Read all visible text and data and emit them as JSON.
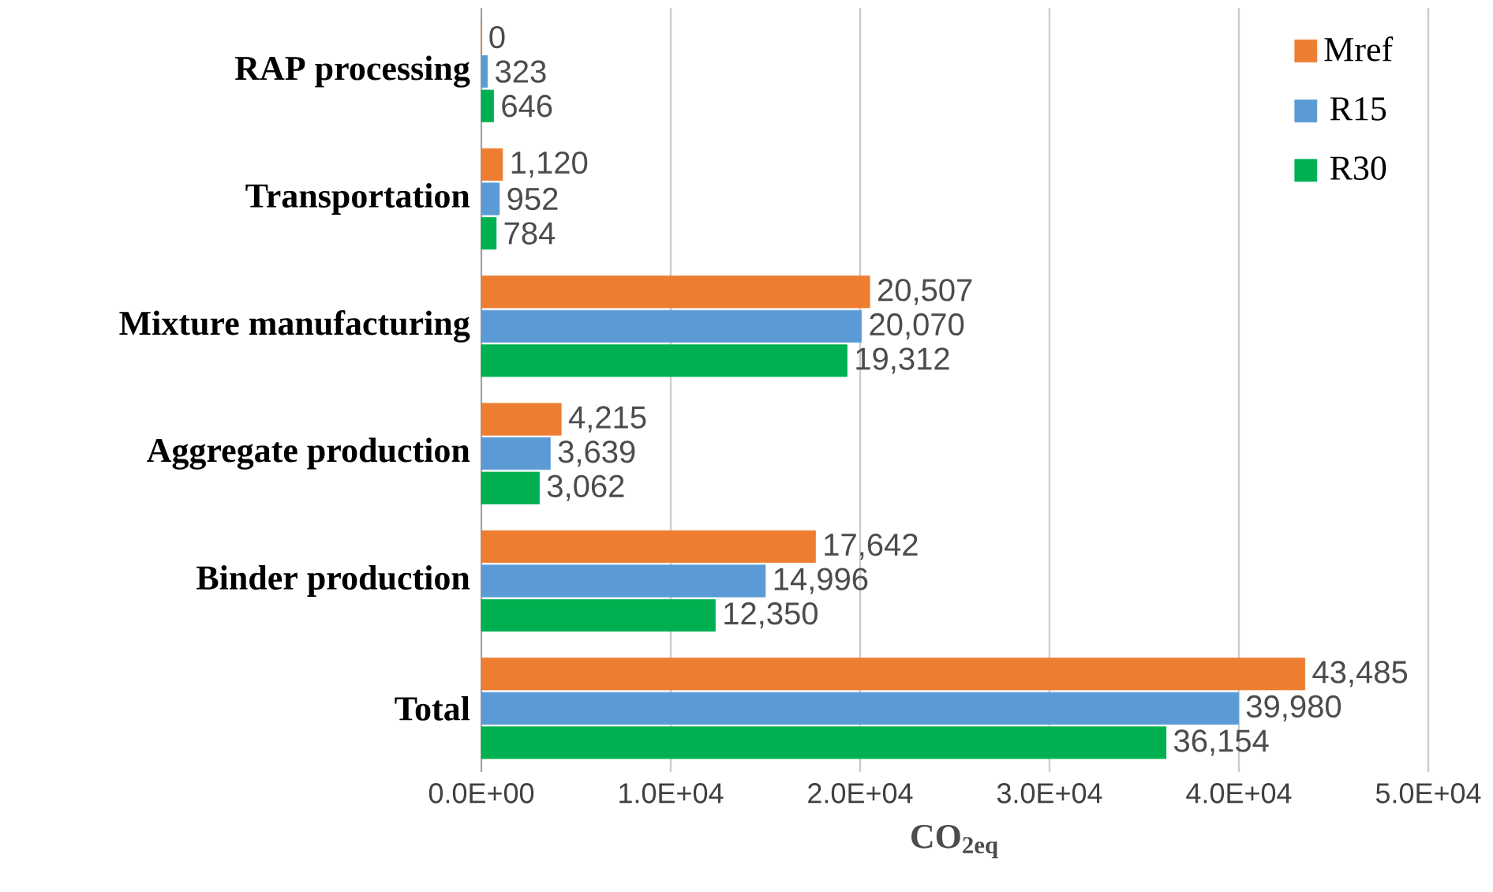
{
  "chart_data": {
    "type": "bar",
    "orientation": "horizontal",
    "xlabel": "CO$_{2eq}$",
    "categories": [
      "RAP processing",
      "Transportation",
      "Mixture manufacturing",
      "Aggregate production",
      "Binder production",
      "Total"
    ],
    "series": [
      {
        "name": "Mref",
        "color": "#ed7d31",
        "values": [
          0,
          1120,
          20507,
          4215,
          17642,
          43485
        ],
        "value_labels": [
          "0",
          "1,120",
          "20,507",
          "4,215",
          "17,642",
          "43,485"
        ]
      },
      {
        "name": "R15",
        "color": "#5b9bd5",
        "values": [
          323,
          952,
          20070,
          3639,
          14996,
          39980
        ],
        "value_labels": [
          "323",
          "952",
          "20,070",
          "3,639",
          "14,996",
          "39,980"
        ]
      },
      {
        "name": "R30",
        "color": "#00b050",
        "values": [
          646,
          784,
          19312,
          3062,
          12350,
          36154
        ],
        "value_labels": [
          "646",
          "784",
          "19,312",
          "3,062",
          "12,350",
          "36,154"
        ]
      }
    ],
    "xlim": [
      0,
      50000
    ],
    "xticks": [
      {
        "value": 0,
        "label": "0.0E+00"
      },
      {
        "value": 10000,
        "label": "1.0E+04"
      },
      {
        "value": 20000,
        "label": "2.0E+04"
      },
      {
        "value": 30000,
        "label": "3.0E+04"
      },
      {
        "value": 40000,
        "label": "4.0E+04"
      },
      {
        "value": 50000,
        "label": "5.0E+04"
      }
    ],
    "grid": "x",
    "legend": "top right"
  }
}
